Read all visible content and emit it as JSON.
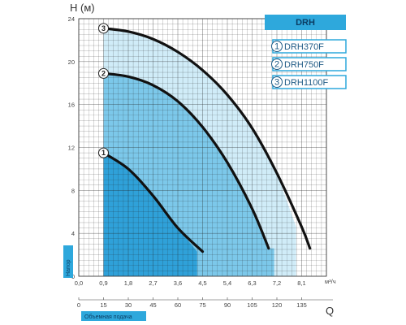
{
  "chart_data": {
    "type": "line",
    "title": "DRH",
    "ylabel": "H (м)",
    "y_side_tag": "Напор",
    "xlabel_unit": "м³/ч",
    "xlabel_q": "Q",
    "x_bottom_tag": "Объемная подача",
    "ylim": [
      0,
      24
    ],
    "y_ticks": [
      "0",
      "4",
      "8",
      "12",
      "16",
      "20",
      "24"
    ],
    "xlim_m3h": [
      0,
      9
    ],
    "x_ticks_m3h": [
      "0,0",
      "0,9",
      "1,8",
      "2,7",
      "3,6",
      "4,5",
      "5,4",
      "6,3",
      "7,2",
      "8,1"
    ],
    "x_ticks_lmin": [
      "0",
      "15",
      "30",
      "45",
      "60",
      "75",
      "90",
      "105",
      "120",
      "135"
    ],
    "grid": true,
    "legend_position": "top-right",
    "series": [
      {
        "name": "DRH370F",
        "marker": "1",
        "x": [
          0.9,
          1.8,
          2.7,
          3.6,
          4.5
        ],
        "y": [
          11.5,
          10.0,
          7.5,
          4.5,
          2.3
        ],
        "band_x": [
          0.9,
          4.3
        ]
      },
      {
        "name": "DRH750F",
        "marker": "2",
        "x": [
          0.9,
          1.8,
          2.7,
          3.6,
          4.5,
          5.4,
          6.3,
          6.9
        ],
        "y": [
          18.9,
          18.6,
          17.8,
          16.3,
          13.9,
          10.6,
          6.3,
          2.6
        ],
        "band_x": [
          0.9,
          7.1
        ]
      },
      {
        "name": "DRH1100F",
        "marker": "3",
        "x": [
          0.9,
          1.8,
          2.7,
          3.6,
          4.5,
          5.4,
          6.3,
          7.2,
          8.1,
          8.4
        ],
        "y": [
          23.1,
          22.8,
          22.1,
          20.9,
          19.2,
          16.9,
          13.8,
          9.6,
          4.6,
          2.6
        ],
        "band_x": [
          0.9,
          7.9
        ]
      }
    ],
    "colors": {
      "band_dark": "#2b9fd8",
      "band_mid": "#60bce6",
      "band_light": "#a9dcf3",
      "curve": "#111111",
      "grid": "#222222",
      "tag_bg": "#2ea8dc",
      "banner_bg": "#2ea8dc",
      "legend_border": "#2ea8dc"
    }
  }
}
